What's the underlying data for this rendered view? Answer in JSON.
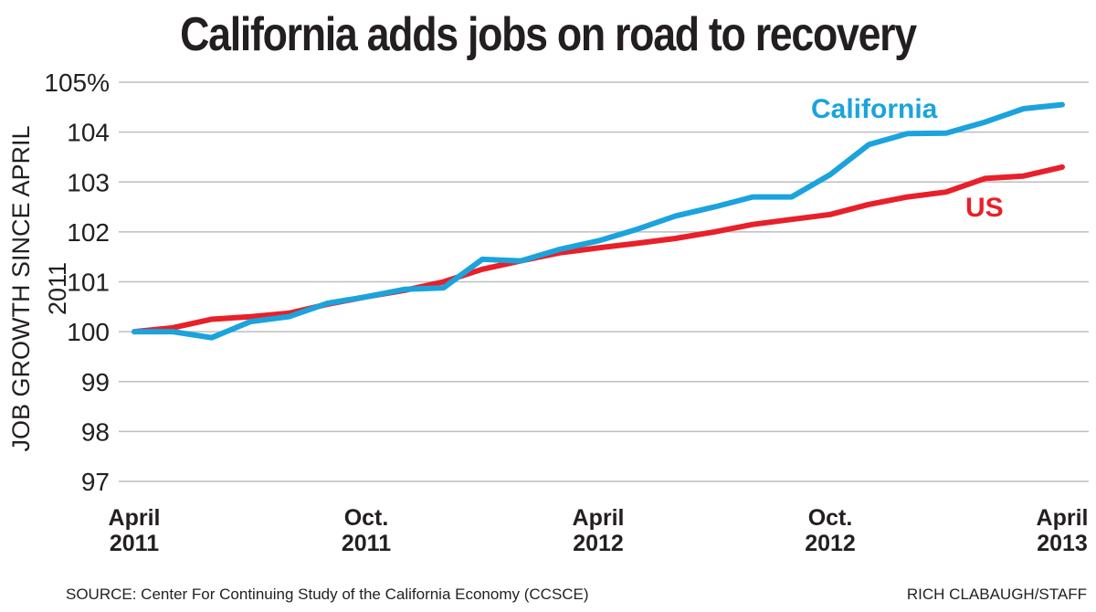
{
  "title": "California adds jobs on road to recovery",
  "source": "SOURCE: Center For Continuing Study of the California Economy (CCSCE)",
  "credit": "RICH CLABAUGH/STAFF",
  "chart_data": {
    "type": "line",
    "title": "California adds jobs on road to recovery",
    "xlabel": "",
    "ylabel": "JOB GROWTH SINCE APRIL 2011",
    "ylim": [
      97,
      105
    ],
    "xlim": [
      "2011-04",
      "2013-04"
    ],
    "grid": "horizontal",
    "legend": "direct labels on lines",
    "y_ticks": [
      "97",
      "98",
      "99",
      "100",
      "101",
      "102",
      "103",
      "104",
      "105%"
    ],
    "y_tick_values": [
      97,
      98,
      99,
      100,
      101,
      102,
      103,
      104,
      105
    ],
    "x_ticks": [
      {
        "date": "2011-04",
        "line1": "April",
        "line2": "2011"
      },
      {
        "date": "2011-10",
        "line1": "Oct.",
        "line2": "2011"
      },
      {
        "date": "2012-04",
        "line1": "April",
        "line2": "2012"
      },
      {
        "date": "2012-10",
        "line1": "Oct.",
        "line2": "2012"
      },
      {
        "date": "2013-04",
        "line1": "April",
        "line2": "2013"
      }
    ],
    "x": [
      "2011-04",
      "2011-05",
      "2011-06",
      "2011-07",
      "2011-08",
      "2011-09",
      "2011-10",
      "2011-11",
      "2011-12",
      "2012-01",
      "2012-02",
      "2012-03",
      "2012-04",
      "2012-05",
      "2012-06",
      "2012-07",
      "2012-08",
      "2012-09",
      "2012-10",
      "2012-11",
      "2012-12",
      "2013-01",
      "2013-02",
      "2013-03",
      "2013-04"
    ],
    "series": [
      {
        "name": "California",
        "color": "#1ba3dd",
        "values": [
          100.0,
          100.0,
          99.88,
          100.2,
          100.3,
          100.57,
          100.7,
          100.85,
          100.88,
          101.45,
          101.42,
          101.65,
          101.82,
          102.05,
          102.32,
          102.5,
          102.7,
          102.7,
          103.15,
          103.75,
          103.97,
          103.98,
          104.2,
          104.47,
          104.55
        ]
      },
      {
        "name": "US",
        "color": "#e8202a",
        "values": [
          100.0,
          100.08,
          100.25,
          100.3,
          100.37,
          100.55,
          100.7,
          100.83,
          101.0,
          101.25,
          101.42,
          101.58,
          101.68,
          101.77,
          101.87,
          102.0,
          102.15,
          102.25,
          102.35,
          102.55,
          102.7,
          102.8,
          103.07,
          103.12,
          103.3
        ]
      }
    ]
  }
}
